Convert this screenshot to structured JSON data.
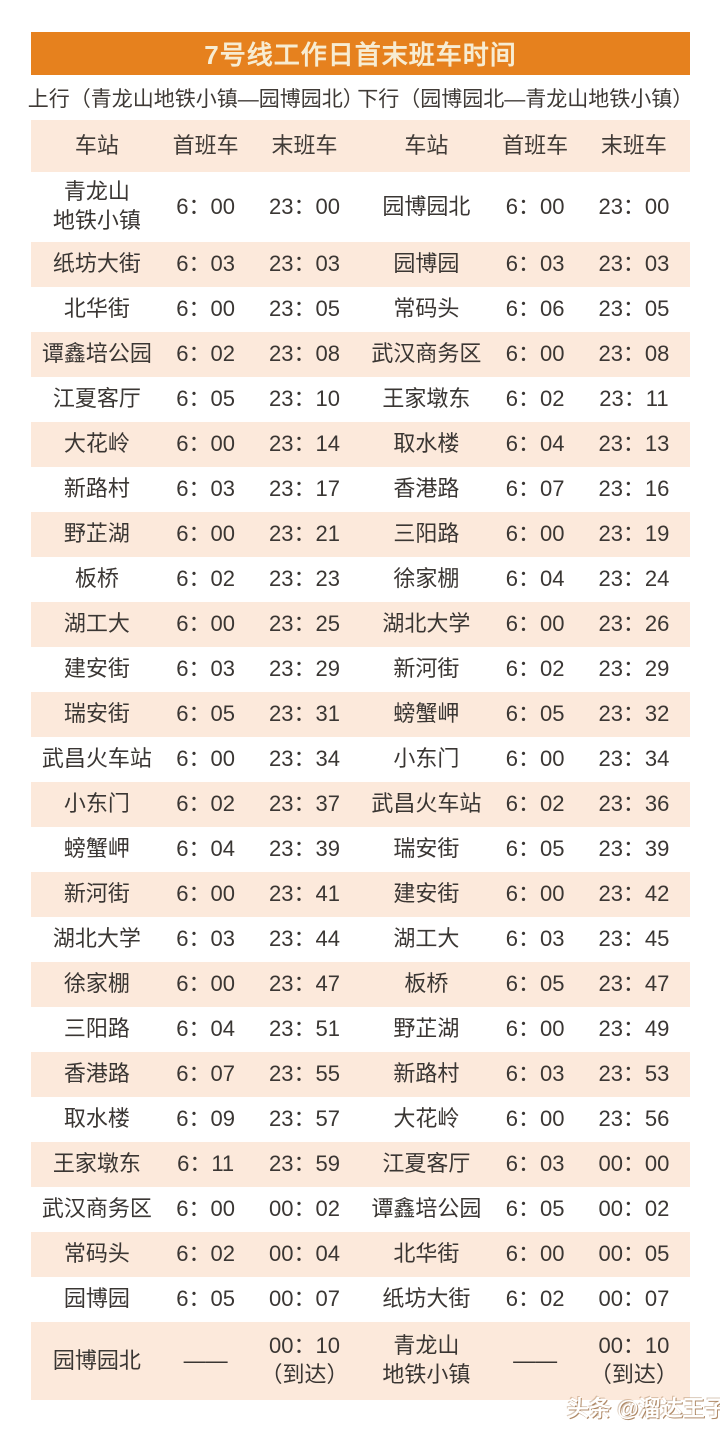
{
  "page": {
    "title": "7号线工作日首末班车时间",
    "watermark": "头条 @溜达王子"
  },
  "directions": {
    "up_label": "上行（青龙山地铁小镇—园博园北）",
    "down_label": "下行（园博园北—青龙山地铁小镇）"
  },
  "colors": {
    "banner_bg": "#E6811E",
    "banner_text": "#F7ECD2",
    "stripe_bg": "#FCE9DB",
    "text": "#3A3633"
  },
  "table": {
    "headers": {
      "station": "车站",
      "first": "首班车",
      "last": "末班车"
    },
    "rows": [
      {
        "up": {
          "station": "青龙山\n地铁小镇",
          "first": "6：00",
          "last": "23：00"
        },
        "down": {
          "station": "园博园北",
          "first": "6：00",
          "last": "23：00"
        }
      },
      {
        "up": {
          "station": "纸坊大街",
          "first": "6：03",
          "last": "23：03"
        },
        "down": {
          "station": "园博园",
          "first": "6：03",
          "last": "23：03"
        }
      },
      {
        "up": {
          "station": "北华街",
          "first": "6：00",
          "last": "23：05"
        },
        "down": {
          "station": "常码头",
          "first": "6：06",
          "last": "23：05"
        }
      },
      {
        "up": {
          "station": "谭鑫培公园",
          "first": "6：02",
          "last": "23：08"
        },
        "down": {
          "station": "武汉商务区",
          "first": "6：00",
          "last": "23：08"
        }
      },
      {
        "up": {
          "station": "江夏客厅",
          "first": "6：05",
          "last": "23：10"
        },
        "down": {
          "station": "王家墩东",
          "first": "6：02",
          "last": "23：11"
        }
      },
      {
        "up": {
          "station": "大花岭",
          "first": "6：00",
          "last": "23：14"
        },
        "down": {
          "station": "取水楼",
          "first": "6：04",
          "last": "23：13"
        }
      },
      {
        "up": {
          "station": "新路村",
          "first": "6：03",
          "last": "23：17"
        },
        "down": {
          "station": "香港路",
          "first": "6：07",
          "last": "23：16"
        }
      },
      {
        "up": {
          "station": "野芷湖",
          "first": "6：00",
          "last": "23：21"
        },
        "down": {
          "station": "三阳路",
          "first": "6：00",
          "last": "23：19"
        }
      },
      {
        "up": {
          "station": "板桥",
          "first": "6：02",
          "last": "23：23"
        },
        "down": {
          "station": "徐家棚",
          "first": "6：04",
          "last": "23：24"
        }
      },
      {
        "up": {
          "station": "湖工大",
          "first": "6：00",
          "last": "23：25"
        },
        "down": {
          "station": "湖北大学",
          "first": "6：00",
          "last": "23：26"
        }
      },
      {
        "up": {
          "station": "建安街",
          "first": "6：03",
          "last": "23：29"
        },
        "down": {
          "station": "新河街",
          "first": "6：02",
          "last": "23：29"
        }
      },
      {
        "up": {
          "station": "瑞安街",
          "first": "6：05",
          "last": "23：31"
        },
        "down": {
          "station": "螃蟹岬",
          "first": "6：05",
          "last": "23：32"
        }
      },
      {
        "up": {
          "station": "武昌火车站",
          "first": "6：00",
          "last": "23：34"
        },
        "down": {
          "station": "小东门",
          "first": "6：00",
          "last": "23：34"
        }
      },
      {
        "up": {
          "station": "小东门",
          "first": "6：02",
          "last": "23：37"
        },
        "down": {
          "station": "武昌火车站",
          "first": "6：02",
          "last": "23：36"
        }
      },
      {
        "up": {
          "station": "螃蟹岬",
          "first": "6：04",
          "last": "23：39"
        },
        "down": {
          "station": "瑞安街",
          "first": "6：05",
          "last": "23：39"
        }
      },
      {
        "up": {
          "station": "新河街",
          "first": "6：00",
          "last": "23：41"
        },
        "down": {
          "station": "建安街",
          "first": "6：00",
          "last": "23：42"
        }
      },
      {
        "up": {
          "station": "湖北大学",
          "first": "6：03",
          "last": "23：44"
        },
        "down": {
          "station": "湖工大",
          "first": "6：03",
          "last": "23：45"
        }
      },
      {
        "up": {
          "station": "徐家棚",
          "first": "6：00",
          "last": "23：47"
        },
        "down": {
          "station": "板桥",
          "first": "6：05",
          "last": "23：47"
        }
      },
      {
        "up": {
          "station": "三阳路",
          "first": "6：04",
          "last": "23：51"
        },
        "down": {
          "station": "野芷湖",
          "first": "6：00",
          "last": "23：49"
        }
      },
      {
        "up": {
          "station": "香港路",
          "first": "6：07",
          "last": "23：55"
        },
        "down": {
          "station": "新路村",
          "first": "6：03",
          "last": "23：53"
        }
      },
      {
        "up": {
          "station": "取水楼",
          "first": "6：09",
          "last": "23：57"
        },
        "down": {
          "station": "大花岭",
          "first": "6：00",
          "last": "23：56"
        }
      },
      {
        "up": {
          "station": "王家墩东",
          "first": "6：11",
          "last": "23：59"
        },
        "down": {
          "station": "江夏客厅",
          "first": "6：03",
          "last": "00：00"
        }
      },
      {
        "up": {
          "station": "武汉商务区",
          "first": "6：00",
          "last": "00：02"
        },
        "down": {
          "station": "谭鑫培公园",
          "first": "6：05",
          "last": "00：02"
        }
      },
      {
        "up": {
          "station": "常码头",
          "first": "6：02",
          "last": "00：04"
        },
        "down": {
          "station": "北华街",
          "first": "6：00",
          "last": "00：05"
        }
      },
      {
        "up": {
          "station": "园博园",
          "first": "6：05",
          "last": "00：07"
        },
        "down": {
          "station": "纸坊大街",
          "first": "6：02",
          "last": "00：07"
        }
      },
      {
        "up": {
          "station": "园博园北",
          "first": "——",
          "last": "00：10\n（到达）"
        },
        "down": {
          "station": "青龙山\n地铁小镇",
          "first": "——",
          "last": "00：10\n（到达）"
        }
      }
    ]
  }
}
